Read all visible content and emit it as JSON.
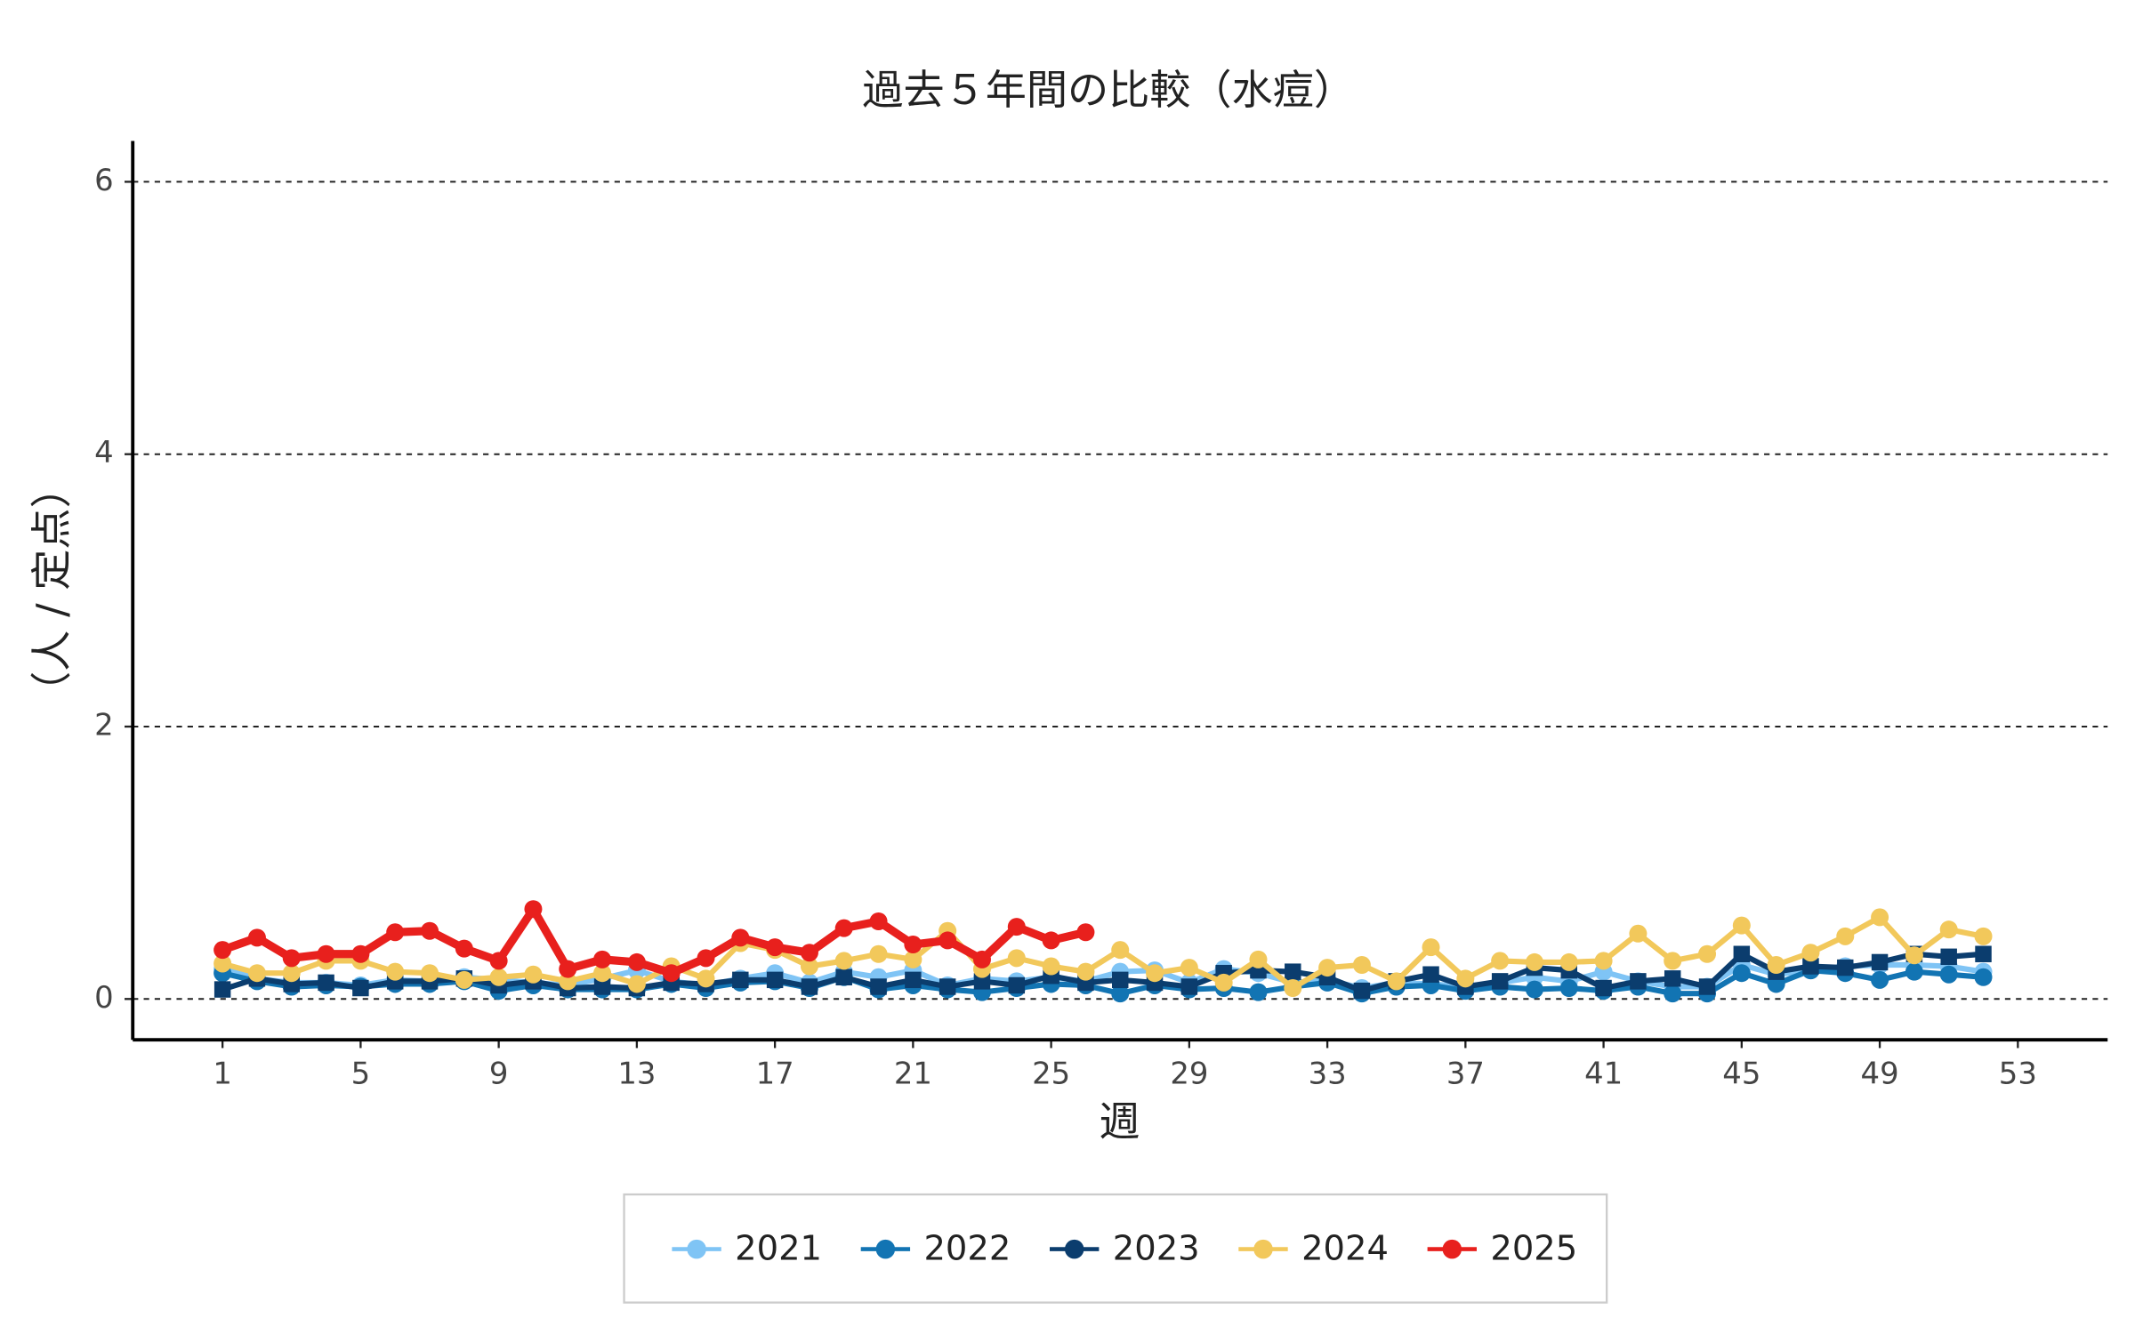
{
  "chart_data": {
    "type": "line",
    "title": "過去５年間の比較（水痘）",
    "xlabel": "週",
    "ylabel": "（人 / 定点）",
    "x": [
      1,
      2,
      3,
      4,
      5,
      6,
      7,
      8,
      9,
      10,
      11,
      12,
      13,
      14,
      15,
      16,
      17,
      18,
      19,
      20,
      21,
      22,
      23,
      24,
      25,
      26,
      27,
      28,
      29,
      30,
      31,
      32,
      33,
      34,
      35,
      36,
      37,
      38,
      39,
      40,
      41,
      42,
      43,
      44,
      45,
      46,
      47,
      48,
      49,
      50,
      51,
      52
    ],
    "xlim": [
      -1.6,
      55.6
    ],
    "xticks": [
      1,
      5,
      9,
      13,
      17,
      21,
      25,
      29,
      33,
      37,
      41,
      45,
      49,
      53
    ],
    "ylim": [
      -0.3,
      6.3
    ],
    "yticks": [
      0,
      2,
      4,
      6
    ],
    "grid": true,
    "legend": "bottom",
    "series": [
      {
        "name": "2021",
        "color": "#7fc4f5",
        "marker": "circle",
        "values": [
          0.22,
          0.15,
          0.12,
          0.12,
          0.1,
          0.14,
          0.13,
          0.16,
          0.14,
          0.12,
          0.1,
          0.15,
          0.21,
          0.13,
          0.1,
          0.15,
          0.19,
          0.12,
          0.2,
          0.16,
          0.21,
          0.1,
          0.15,
          0.13,
          0.16,
          0.13,
          0.2,
          0.21,
          0.12,
          0.22,
          0.19,
          0.12,
          0.14,
          0.08,
          0.12,
          0.11,
          0.09,
          0.12,
          0.16,
          0.13,
          0.2,
          0.13,
          0.09,
          0.09,
          0.25,
          0.18,
          0.21,
          0.24,
          0.25,
          0.25,
          0.24,
          0.2
        ]
      },
      {
        "name": "2022",
        "color": "#1274b3",
        "marker": "circle",
        "values": [
          0.19,
          0.13,
          0.09,
          0.1,
          0.09,
          0.11,
          0.11,
          0.13,
          0.06,
          0.1,
          0.07,
          0.07,
          0.07,
          0.11,
          0.08,
          0.12,
          0.13,
          0.08,
          0.16,
          0.07,
          0.1,
          0.07,
          0.05,
          0.08,
          0.11,
          0.1,
          0.04,
          0.1,
          0.07,
          0.08,
          0.05,
          0.09,
          0.12,
          0.04,
          0.09,
          0.1,
          0.06,
          0.09,
          0.07,
          0.08,
          0.06,
          0.09,
          0.04,
          0.04,
          0.19,
          0.11,
          0.21,
          0.19,
          0.14,
          0.2,
          0.18,
          0.16
        ]
      },
      {
        "name": "2023",
        "color": "#0b3d6e",
        "marker": "square",
        "values": [
          0.07,
          0.15,
          0.11,
          0.12,
          0.08,
          0.13,
          0.13,
          0.15,
          0.1,
          0.13,
          0.08,
          0.09,
          0.08,
          0.12,
          0.11,
          0.14,
          0.14,
          0.09,
          0.16,
          0.09,
          0.14,
          0.09,
          0.13,
          0.1,
          0.17,
          0.12,
          0.14,
          0.12,
          0.09,
          0.19,
          0.21,
          0.2,
          0.16,
          0.06,
          0.13,
          0.18,
          0.09,
          0.13,
          0.23,
          0.21,
          0.08,
          0.13,
          0.15,
          0.09,
          0.33,
          0.2,
          0.24,
          0.23,
          0.27,
          0.33,
          0.31,
          0.33
        ]
      },
      {
        "name": "2024",
        "color": "#f2c85b",
        "marker": "circle",
        "values": [
          0.26,
          0.19,
          0.19,
          0.28,
          0.28,
          0.2,
          0.19,
          0.14,
          0.16,
          0.18,
          0.13,
          0.19,
          0.11,
          0.24,
          0.15,
          0.41,
          0.36,
          0.24,
          0.28,
          0.33,
          0.29,
          0.5,
          0.22,
          0.3,
          0.24,
          0.2,
          0.36,
          0.19,
          0.23,
          0.12,
          0.29,
          0.08,
          0.23,
          0.25,
          0.13,
          0.38,
          0.15,
          0.28,
          0.27,
          0.27,
          0.28,
          0.48,
          0.28,
          0.33,
          0.54,
          0.25,
          0.34,
          0.46,
          0.6,
          0.32,
          0.51,
          0.46
        ]
      },
      {
        "name": "2025",
        "color": "#e8201d",
        "marker": "circle",
        "values": [
          0.36,
          0.45,
          0.3,
          0.33,
          0.33,
          0.49,
          0.5,
          0.37,
          0.28,
          0.66,
          0.22,
          0.29,
          0.27,
          0.19,
          0.3,
          0.45,
          0.38,
          0.34,
          0.52,
          0.57,
          0.4,
          0.43,
          0.29,
          0.53,
          0.43,
          0.49,
          null,
          null,
          null,
          null,
          null,
          null,
          null,
          null,
          null,
          null,
          null,
          null,
          null,
          null,
          null,
          null,
          null,
          null,
          null,
          null,
          null,
          null,
          null,
          null,
          null,
          null
        ]
      }
    ]
  }
}
